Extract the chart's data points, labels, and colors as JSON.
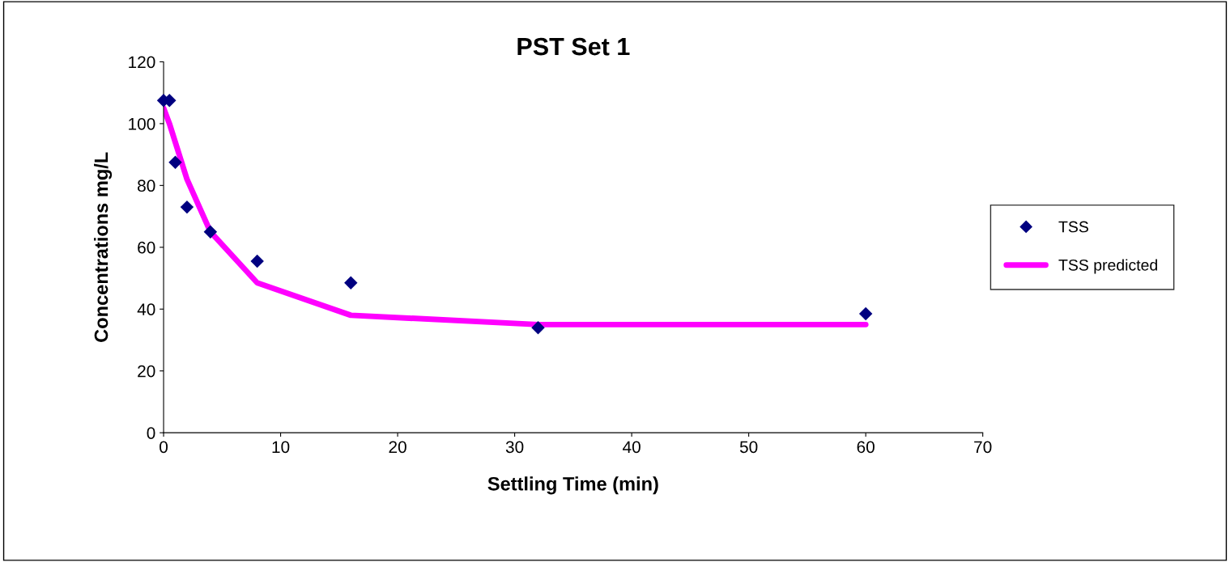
{
  "chart_data": {
    "type": "scatter",
    "title": "PST Set 1",
    "xlabel": "Settling Time (min)",
    "ylabel": "Concentrations mg/L",
    "series": [
      {
        "name": "TSS",
        "marker": "diamond",
        "color": "#000080",
        "x": [
          0,
          0.5,
          1,
          2,
          4,
          8,
          16,
          32,
          60
        ],
        "values": [
          107.5,
          107.5,
          87.5,
          73,
          65,
          55.5,
          48.5,
          34,
          38.5
        ]
      },
      {
        "name": "TSS predicted",
        "type": "line",
        "marker": "none",
        "line_style": "solid",
        "color": "#ff00ff",
        "x": [
          0,
          0.5,
          1,
          2,
          4,
          8,
          16,
          32,
          60
        ],
        "values": [
          105,
          100,
          94,
          82,
          65,
          48.5,
          38,
          35,
          35
        ]
      }
    ],
    "xlim": [
      0,
      70
    ],
    "xticks": [
      0,
      10,
      20,
      30,
      40,
      50,
      60,
      70
    ],
    "ylim": [
      0,
      120
    ],
    "yticks": [
      0,
      20,
      40,
      60,
      80,
      100,
      120
    ],
    "grid": false,
    "legend": "right"
  }
}
